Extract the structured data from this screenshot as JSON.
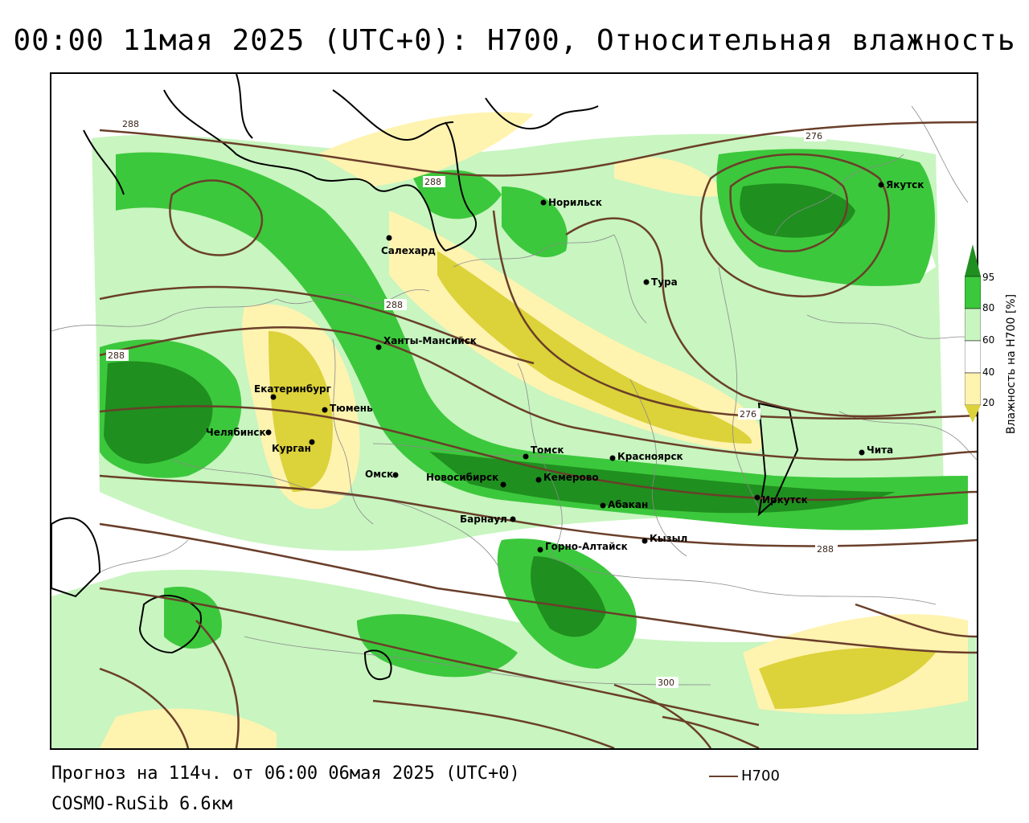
{
  "title": "00:00 11мая 2025 (UTC+0): H700, Относительная влажность",
  "footer": {
    "forecast": "Прогноз на 114ч. от 06:00 06мая 2025 (UTC+0)",
    "model": "COSMO-RuSib 6.6км",
    "series_label": "H700"
  },
  "colorbar": {
    "title": "Влажность на H700 [%]",
    "ticks": [
      "95",
      "80",
      "60",
      "40",
      "20"
    ],
    "colors": {
      "gt95": "#1f8f1f",
      "80_95": "#3cc83c",
      "60_80": "#c8f5c0",
      "40_60": "#ffffff",
      "20_40": "#fff3b0",
      "lt20": "#dcd23a"
    }
  },
  "colors": {
    "contour": "#6a3f2a",
    "coast": "#000000",
    "border": "#8a8a8a"
  },
  "cities": [
    {
      "id": "norilsk",
      "name": "Норильск"
    },
    {
      "id": "yakutsk",
      "name": "Якутск"
    },
    {
      "id": "salekhard",
      "name": "Салехард"
    },
    {
      "id": "tura",
      "name": "Тура"
    },
    {
      "id": "khanty",
      "name": "Ханты-Мансийск"
    },
    {
      "id": "ekaterinburg",
      "name": "Екатеринбург"
    },
    {
      "id": "tyumen",
      "name": "Тюмень"
    },
    {
      "id": "chelyabinsk",
      "name": "Челябинск"
    },
    {
      "id": "kurgan",
      "name": "Курган"
    },
    {
      "id": "omsk",
      "name": "Омск"
    },
    {
      "id": "novosibirsk",
      "name": "Новосибирск"
    },
    {
      "id": "tomsk",
      "name": "Томск"
    },
    {
      "id": "kemerovo",
      "name": "Кемерово"
    },
    {
      "id": "krasnoyarsk",
      "name": "Красноярск"
    },
    {
      "id": "barnaul",
      "name": "Барнаул"
    },
    {
      "id": "abakan",
      "name": "Абакан"
    },
    {
      "id": "gorno",
      "name": "Горно-Алтайск"
    },
    {
      "id": "kyzyl",
      "name": "Кызыл"
    },
    {
      "id": "irkutsk",
      "name": "Иркутск"
    },
    {
      "id": "chita",
      "name": "Чита"
    }
  ],
  "contour_labels": [
    "288",
    "288",
    "288",
    "288",
    "276",
    "276",
    "288",
    "300"
  ]
}
